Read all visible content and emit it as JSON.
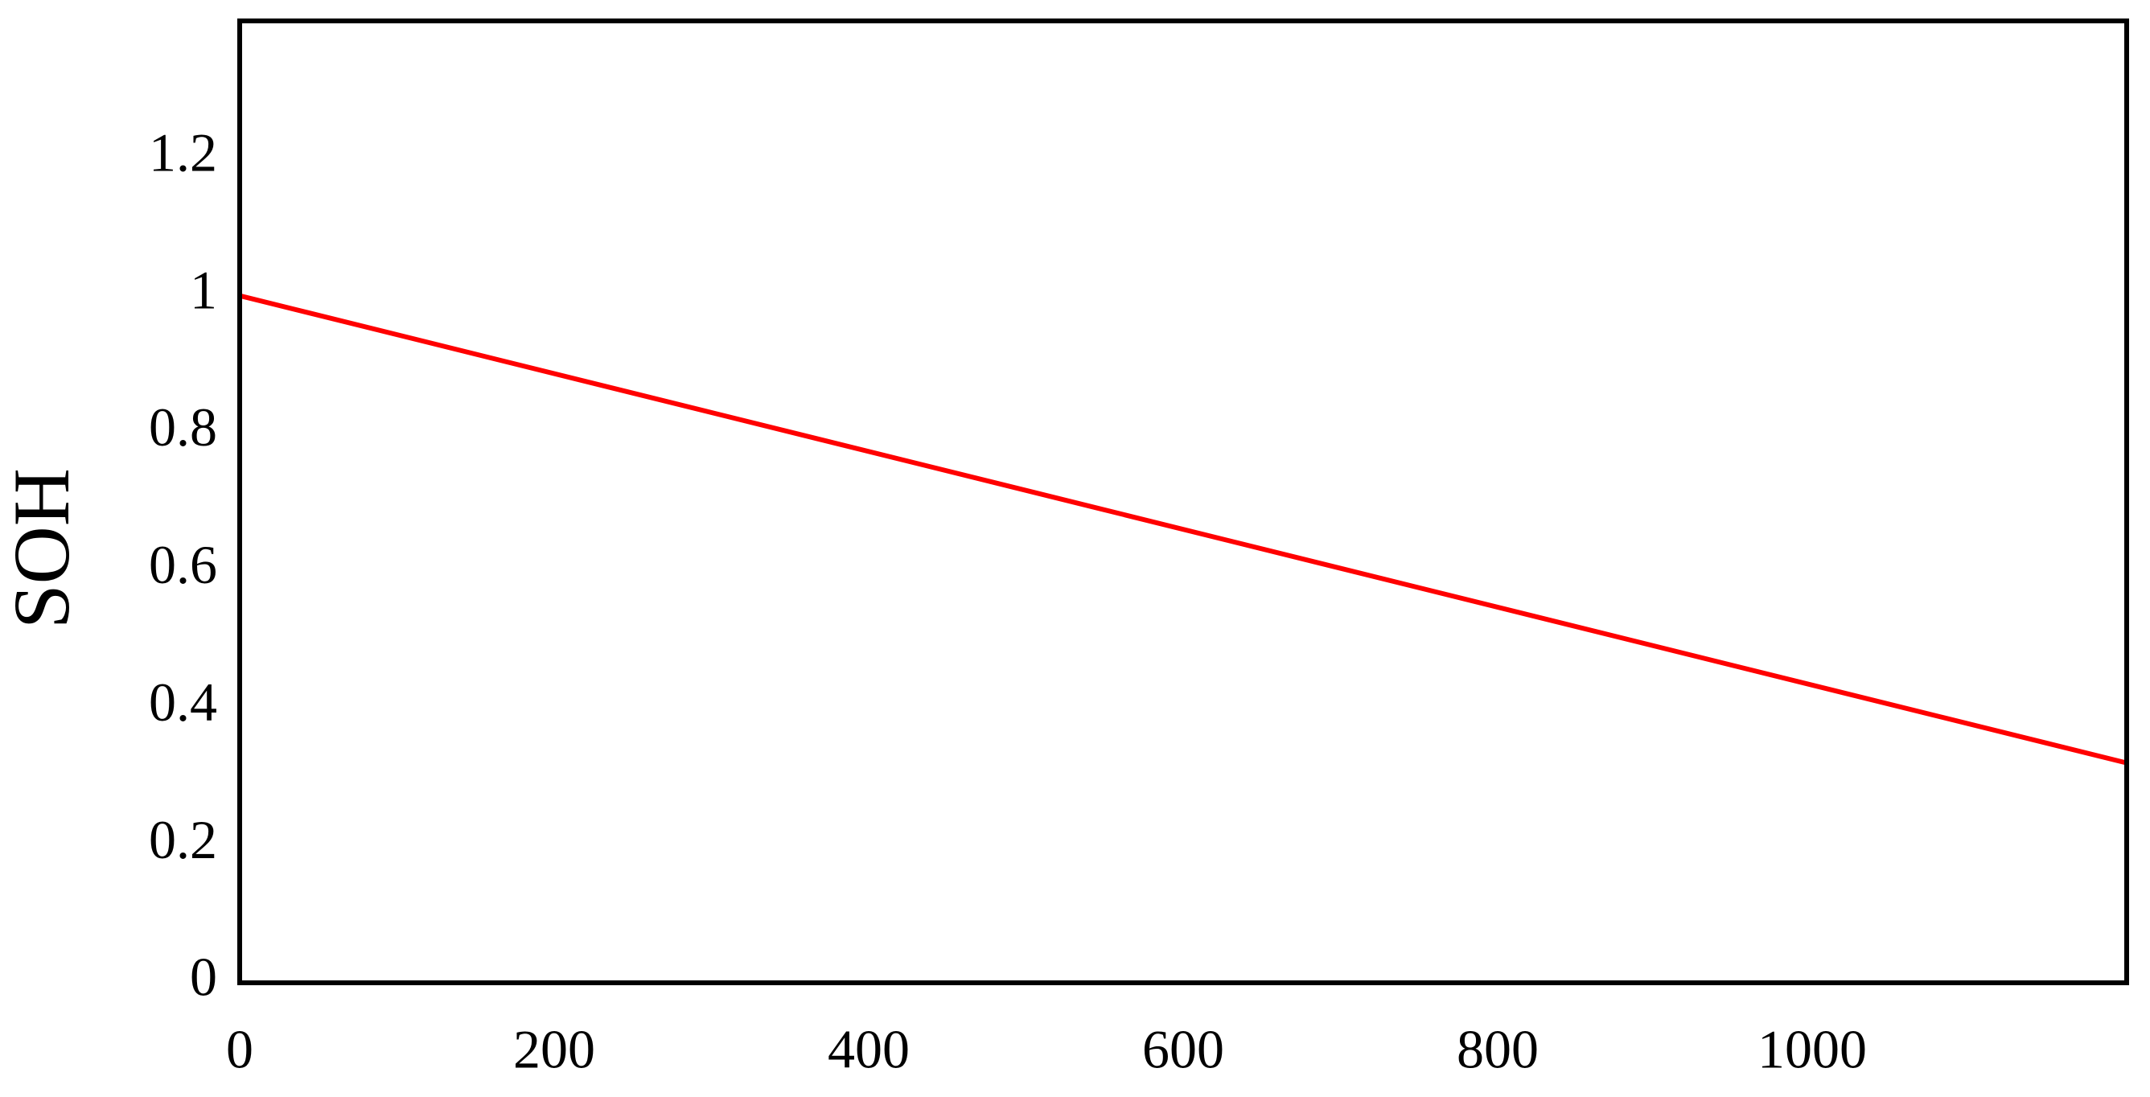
{
  "chart_data": {
    "type": "line",
    "y_label": "SOH",
    "x": [
      0,
      1200
    ],
    "series": [
      {
        "color": "#ff0000",
        "values": [
          1,
          0.32
        ]
      }
    ],
    "xlim": [
      0,
      1200
    ],
    "xticks": [
      0,
      200,
      400,
      600,
      800,
      1000
    ],
    "ylim": [
      0,
      1.4
    ],
    "yticks": [
      0,
      0.2,
      0.4,
      0.6,
      0.8,
      1,
      1.2
    ],
    "grid": false
  }
}
